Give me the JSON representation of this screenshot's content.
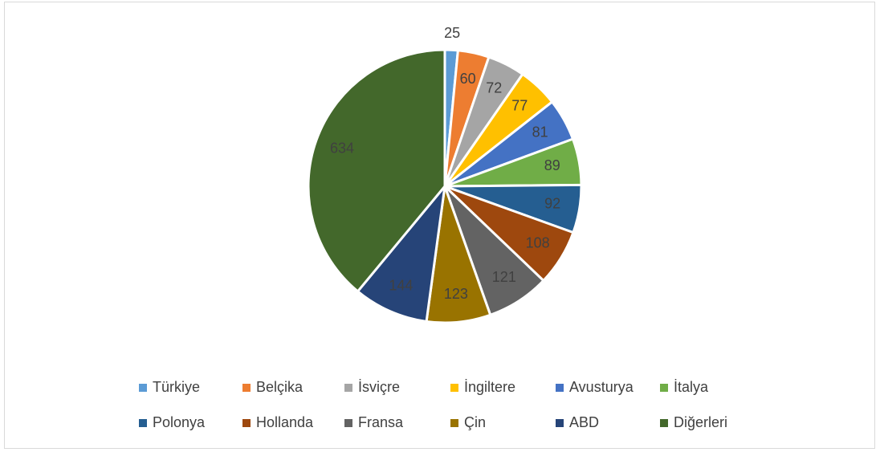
{
  "chart_data": {
    "type": "pie",
    "categories": [
      "Türkiye",
      "Belçika",
      "İsviçre",
      "İngiltere",
      "Avusturya",
      "İtalya",
      "Polonya",
      "Hollanda",
      "Fransa",
      "Çin",
      "ABD",
      "Diğerleri"
    ],
    "values": [
      25,
      60,
      72,
      77,
      81,
      89,
      92,
      108,
      121,
      123,
      144,
      634
    ],
    "colors": [
      "#5b9bd5",
      "#ed7d31",
      "#a5a5a5",
      "#ffc000",
      "#4472c4",
      "#70ad47",
      "#255e91",
      "#9e480e",
      "#636363",
      "#997300",
      "#264478",
      "#43682b"
    ],
    "legend": "bottom"
  }
}
